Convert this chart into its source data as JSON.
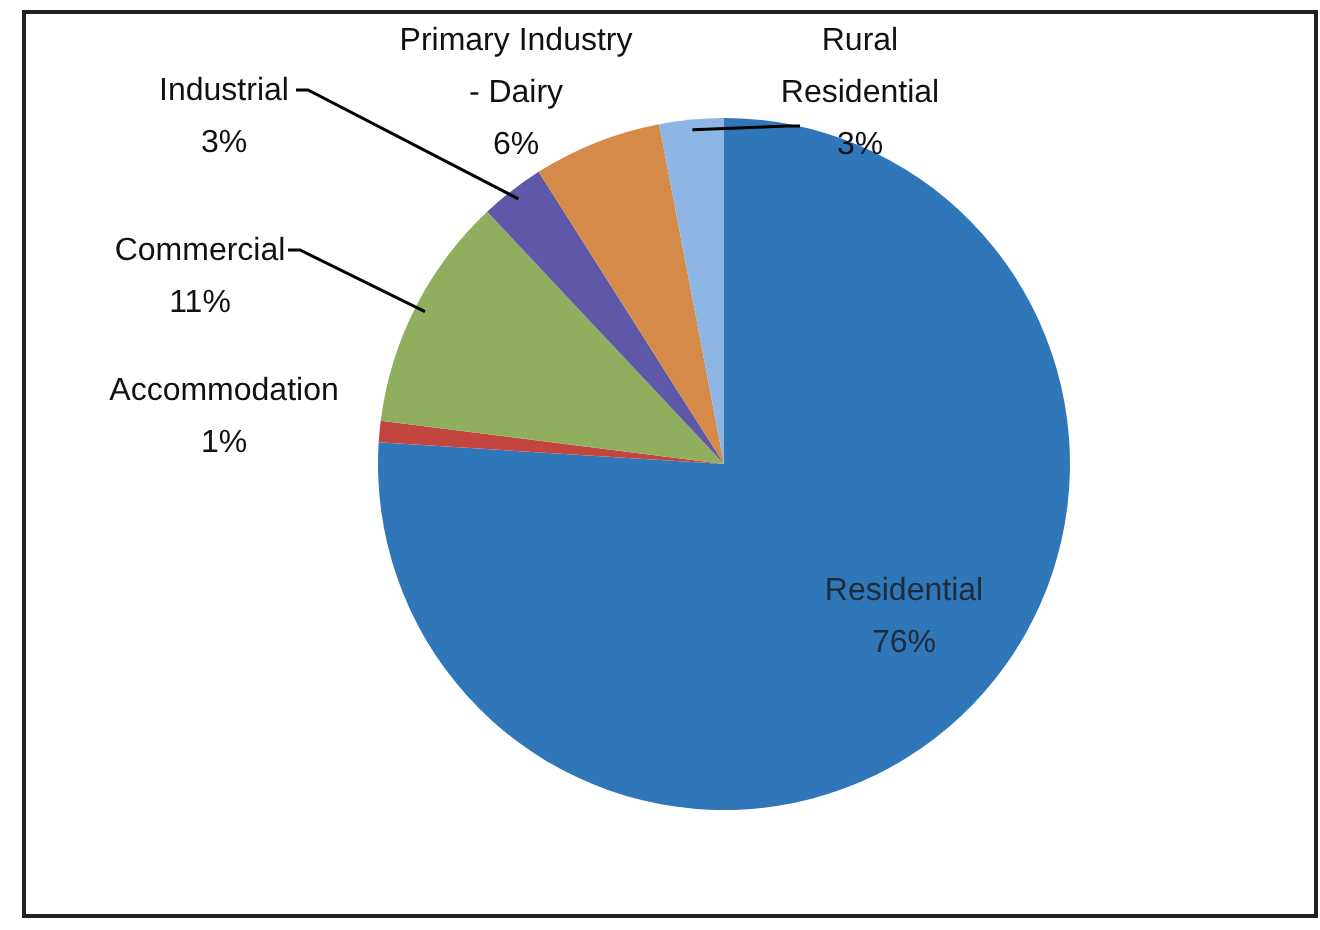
{
  "chart_data": {
    "type": "pie",
    "categories": [
      "Residential",
      "Accommodation",
      "Commercial",
      "Industrial",
      "Primary Industry - Dairy",
      "Rural Residential"
    ],
    "values": [
      76,
      1,
      11,
      3,
      6,
      3
    ],
    "value_labels": [
      "76%",
      "1%",
      "11%",
      "3%",
      "6%",
      "3%"
    ],
    "colors": [
      "#2f77b8",
      "#c2463f",
      "#8faf5e",
      "#5f58a8",
      "#d48a48",
      "#8db6e4"
    ]
  }
}
